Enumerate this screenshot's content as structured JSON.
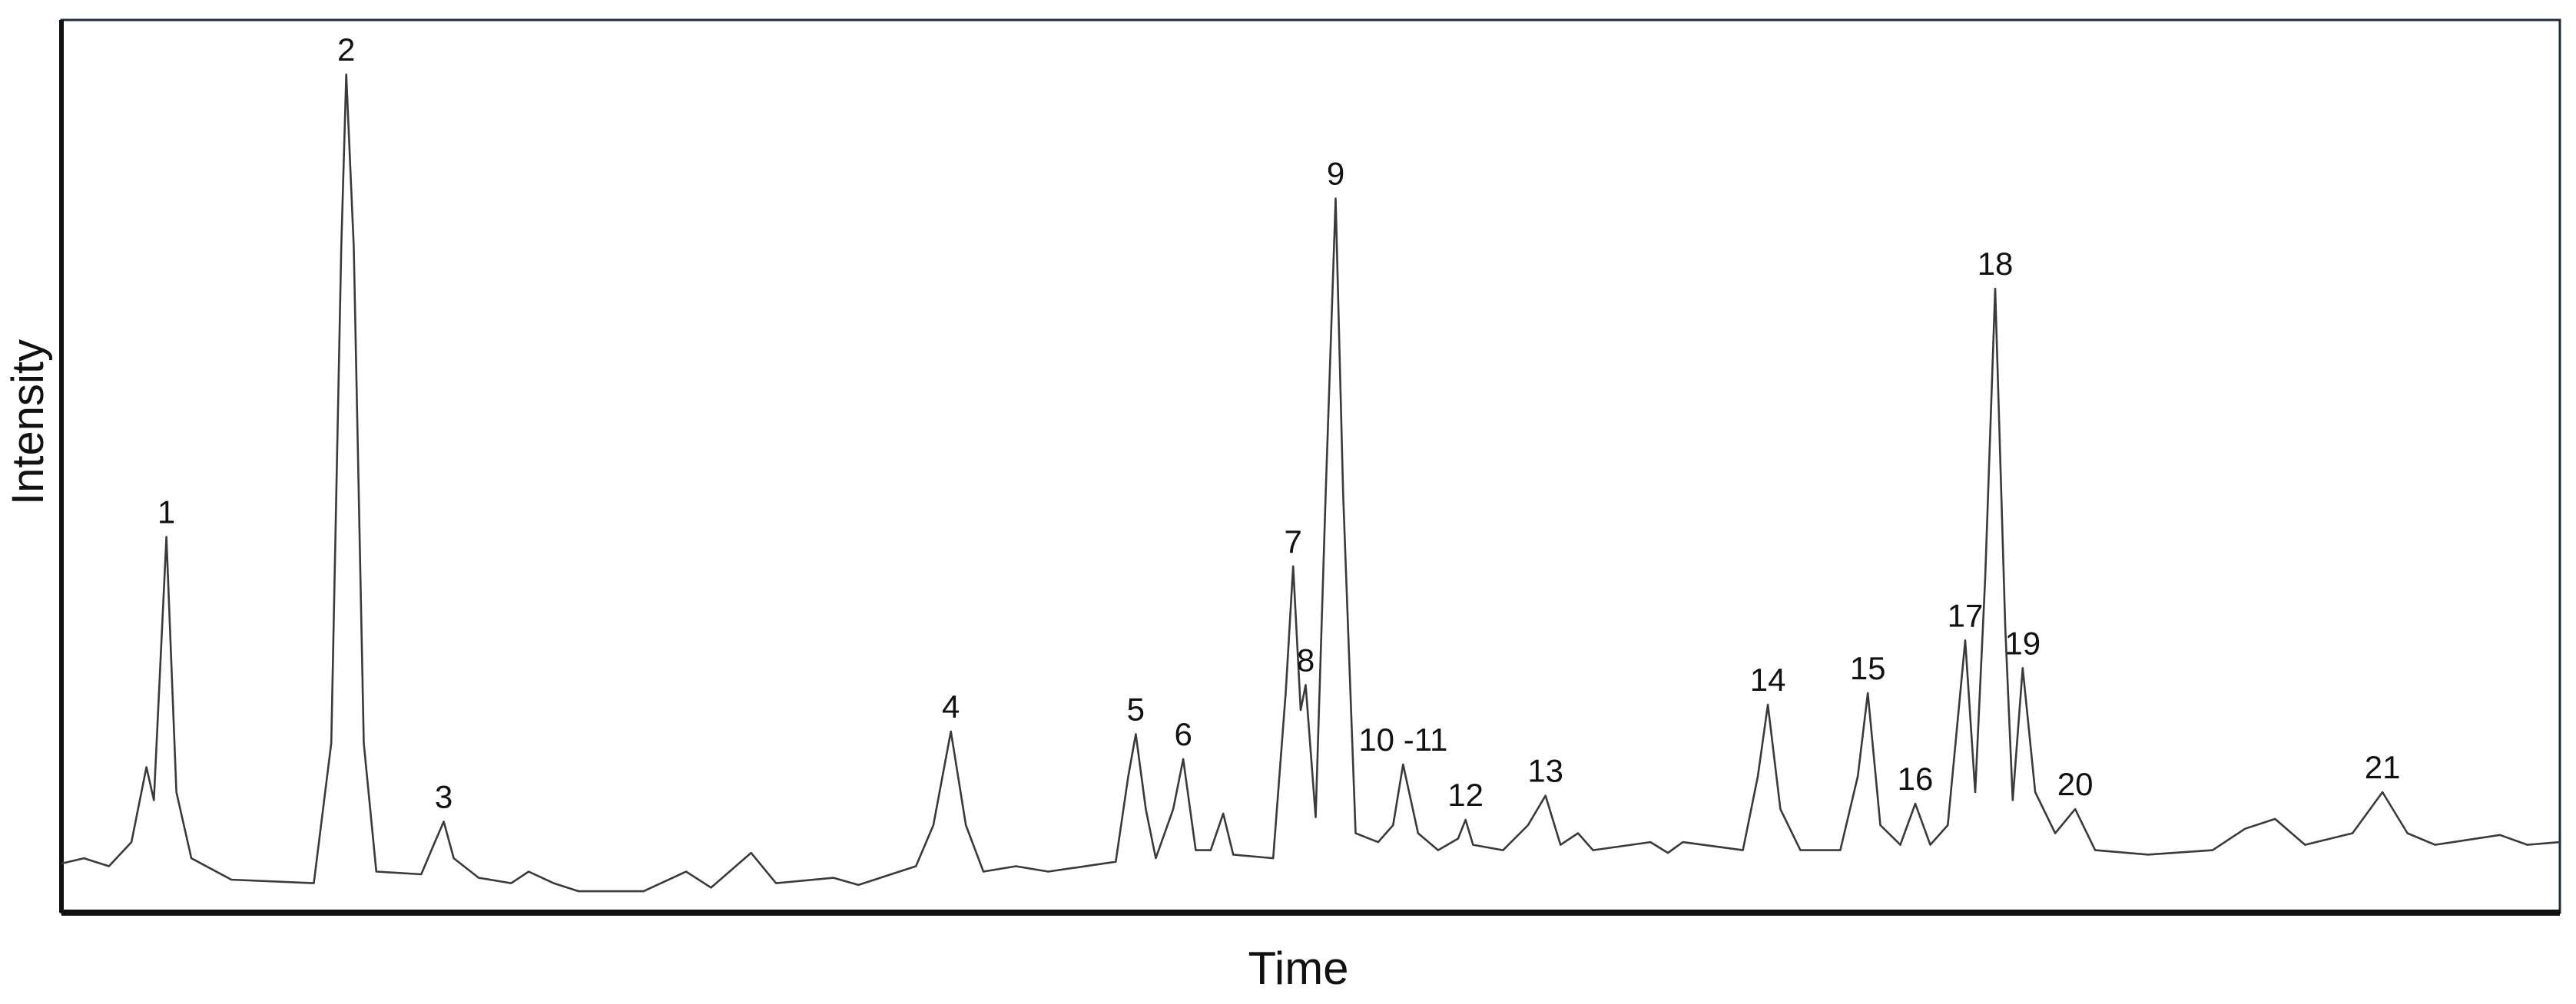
{
  "chart_data": {
    "type": "line",
    "x_label": "Time",
    "y_label": "Intensity",
    "xlim": [
      0,
      100
    ],
    "ylim": [
      0,
      100
    ],
    "x": [
      0,
      0.9,
      1.9,
      2.8,
      3.4,
      3.7,
      4.2,
      4.6,
      5.2,
      6.8,
      10.1,
      10.8,
      11.2,
      11.4,
      11.7,
      12.1,
      12.6,
      14.4,
      14.9,
      15.3,
      15.7,
      16.7,
      18.0,
      18.7,
      19.7,
      20.7,
      23.3,
      25.0,
      26.0,
      27.6,
      28.6,
      30.9,
      31.9,
      34.2,
      34.9,
      35.6,
      36.2,
      36.9,
      38.2,
      39.5,
      42.2,
      42.7,
      43.0,
      43.4,
      43.8,
      44.5,
      44.9,
      45.4,
      46.0,
      46.5,
      46.9,
      48.5,
      49.0,
      49.3,
      49.6,
      49.8,
      50.2,
      50.6,
      51.0,
      51.3,
      51.8,
      52.7,
      53.3,
      53.7,
      54.3,
      55.1,
      55.9,
      56.2,
      56.5,
      57.7,
      58.7,
      59.4,
      60.0,
      60.7,
      61.3,
      63.6,
      64.3,
      64.9,
      67.3,
      67.9,
      68.3,
      68.8,
      69.6,
      71.2,
      71.9,
      72.3,
      72.8,
      73.6,
      74.2,
      74.8,
      75.5,
      76.2,
      76.6,
      77.0,
      77.4,
      77.8,
      78.1,
      78.5,
      79.0,
      79.8,
      80.6,
      81.4,
      83.5,
      86.1,
      87.4,
      88.6,
      89.8,
      91.7,
      92.9,
      93.9,
      95.0,
      97.6,
      98.7,
      100.0
    ],
    "series": [
      {
        "color": "#3a3a3a",
        "values": [
          5.5,
          6.1,
          5.2,
          7.9,
          16.3,
          12.6,
          42.1,
          13.5,
          6.1,
          3.7,
          3.3,
          19.0,
          74.5,
          93.9,
          74.5,
          19.0,
          4.6,
          4.3,
          7.6,
          10.2,
          6.1,
          3.9,
          3.3,
          4.6,
          3.3,
          2.4,
          2.4,
          4.6,
          2.8,
          6.7,
          3.3,
          3.9,
          3.1,
          5.2,
          9.8,
          20.3,
          9.8,
          4.6,
          5.2,
          4.6,
          5.7,
          15.3,
          20.0,
          11.6,
          6.1,
          11.6,
          17.2,
          7.0,
          7.0,
          11.1,
          6.5,
          6.1,
          24.6,
          38.8,
          22.7,
          25.5,
          10.7,
          46.8,
          80.0,
          46.8,
          8.9,
          7.9,
          9.8,
          16.6,
          8.9,
          7.0,
          8.3,
          10.4,
          7.6,
          7.0,
          9.8,
          13.1,
          7.6,
          8.9,
          7.0,
          7.9,
          6.7,
          7.9,
          7.0,
          15.3,
          23.3,
          11.6,
          7.0,
          7.0,
          15.3,
          24.6,
          9.8,
          7.6,
          12.2,
          7.6,
          9.8,
          30.5,
          13.5,
          37.5,
          69.9,
          32.0,
          12.6,
          27.4,
          13.5,
          8.9,
          11.6,
          7.0,
          6.5,
          7.0,
          9.4,
          10.5,
          7.6,
          8.9,
          13.5,
          8.9,
          7.6,
          8.7,
          7.6,
          7.9
        ]
      }
    ],
    "peaks": [
      {
        "label": "1",
        "x": 4.2,
        "y": 42.1
      },
      {
        "label": "2",
        "x": 11.4,
        "y": 93.9
      },
      {
        "label": "3",
        "x": 15.3,
        "y": 10.2
      },
      {
        "label": "4",
        "x": 35.6,
        "y": 20.3
      },
      {
        "label": "5",
        "x": 43.0,
        "y": 20.0
      },
      {
        "label": "6",
        "x": 44.9,
        "y": 17.2
      },
      {
        "label": "7",
        "x": 49.3,
        "y": 38.8
      },
      {
        "label": "8",
        "x": 49.8,
        "y": 25.5
      },
      {
        "label": "9",
        "x": 51.0,
        "y": 80.0
      },
      {
        "label": "10 -11",
        "x": 53.7,
        "y": 16.6
      },
      {
        "label": "12",
        "x": 56.2,
        "y": 10.4
      },
      {
        "label": "13",
        "x": 59.4,
        "y": 13.1
      },
      {
        "label": "14",
        "x": 68.3,
        "y": 23.3
      },
      {
        "label": "15",
        "x": 72.3,
        "y": 24.6
      },
      {
        "label": "16",
        "x": 74.2,
        "y": 12.2
      },
      {
        "label": "17",
        "x": 76.2,
        "y": 30.5
      },
      {
        "label": "18",
        "x": 77.4,
        "y": 69.9
      },
      {
        "label": "19",
        "x": 78.5,
        "y": 27.4
      },
      {
        "label": "20",
        "x": 80.6,
        "y": 11.6
      },
      {
        "label": "21",
        "x": 92.9,
        "y": 13.5
      }
    ]
  }
}
